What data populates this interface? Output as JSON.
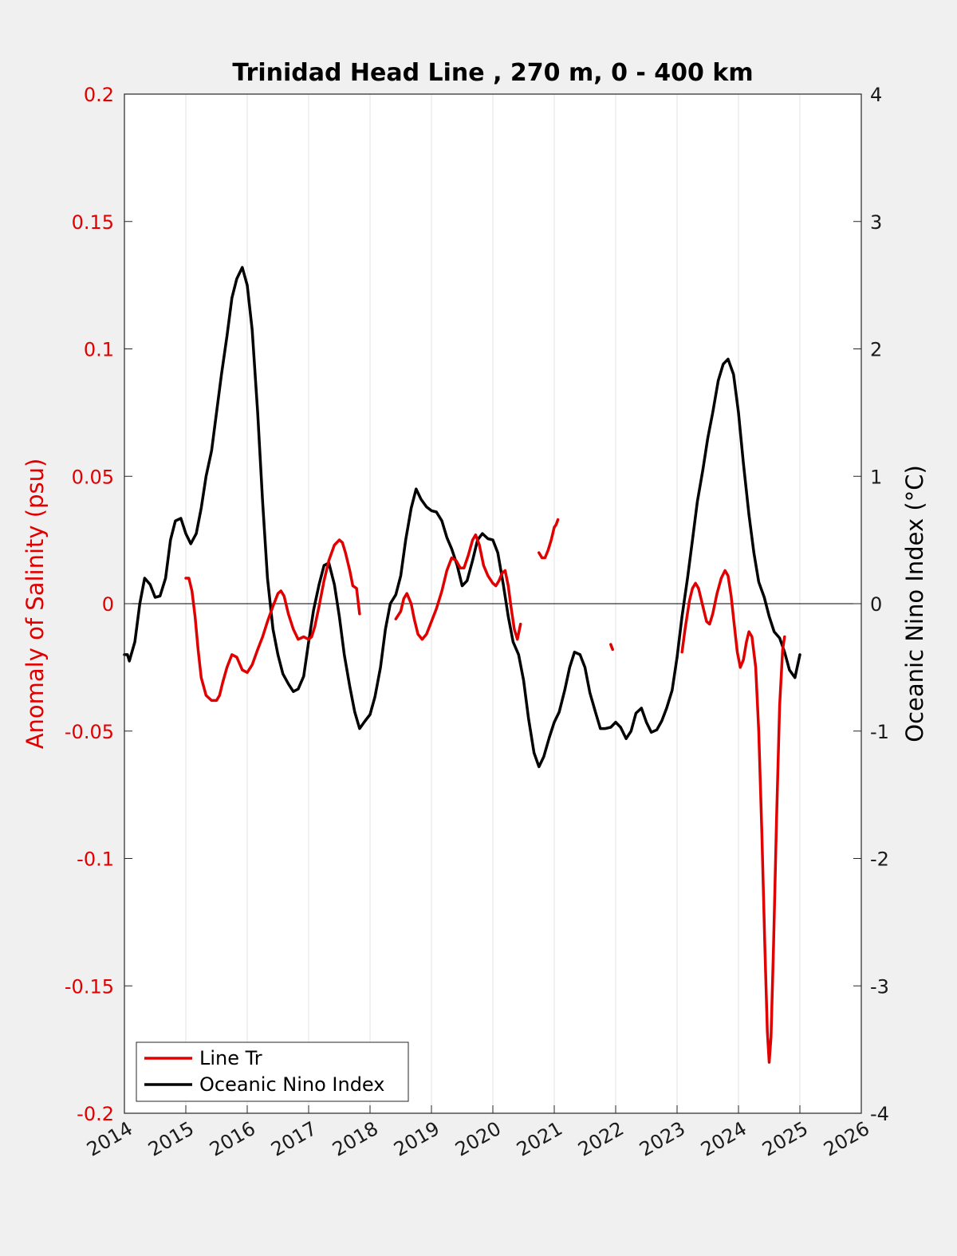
{
  "chart_data": {
    "type": "line",
    "title": "Trinidad Head Line , 270 m, 0 - 400 km",
    "xlim": [
      2014,
      2026
    ],
    "x_ticks": [
      "2014",
      "2015",
      "2016",
      "2017",
      "2018",
      "2019",
      "2020",
      "2021",
      "2022",
      "2023",
      "2024",
      "2025",
      "2026"
    ],
    "y_left": {
      "label": "Anomaly of Salinity (psu)",
      "lim": [
        -0.2,
        0.2
      ],
      "ticks": [
        "0.2",
        "0.15",
        "0.1",
        "0.05",
        "0",
        "-0.05",
        "-0.1",
        "-0.15",
        "-0.2"
      ],
      "color": "#e00000"
    },
    "y_right": {
      "label": "Oceanic Nino Index (°C)",
      "lim": [
        -4,
        4
      ],
      "ticks": [
        "4",
        "3",
        "2",
        "1",
        "0",
        "-1",
        "-2",
        "-3",
        "-4"
      ],
      "color": "#000000"
    },
    "grid": "vertical",
    "zero_line": true,
    "legend_position": "bottom-left",
    "series": [
      {
        "name": "Line Tr",
        "axis": "left",
        "color": "#e00000",
        "segments": [
          [
            [
              2015.0,
              0.01
            ],
            [
              2015.05,
              0.01
            ],
            [
              2015.1,
              0.005
            ],
            [
              2015.15,
              -0.005
            ],
            [
              2015.2,
              -0.018
            ],
            [
              2015.25,
              -0.029
            ],
            [
              2015.33,
              -0.036
            ],
            [
              2015.42,
              -0.038
            ],
            [
              2015.5,
              -0.038
            ],
            [
              2015.55,
              -0.036
            ],
            [
              2015.6,
              -0.031
            ],
            [
              2015.67,
              -0.025
            ],
            [
              2015.75,
              -0.02
            ],
            [
              2015.83,
              -0.021
            ],
            [
              2015.92,
              -0.026
            ],
            [
              2016.0,
              -0.027
            ],
            [
              2016.08,
              -0.024
            ],
            [
              2016.17,
              -0.018
            ],
            [
              2016.25,
              -0.013
            ],
            [
              2016.33,
              -0.007
            ],
            [
              2016.42,
              -0.001
            ],
            [
              2016.5,
              0.004
            ],
            [
              2016.55,
              0.005
            ],
            [
              2016.6,
              0.003
            ],
            [
              2016.67,
              -0.004
            ],
            [
              2016.75,
              -0.01
            ],
            [
              2016.83,
              -0.014
            ],
            [
              2016.92,
              -0.013
            ],
            [
              2017.0,
              -0.014
            ],
            [
              2017.05,
              -0.013
            ],
            [
              2017.1,
              -0.009
            ],
            [
              2017.17,
              -0.001
            ],
            [
              2017.25,
              0.009
            ],
            [
              2017.33,
              0.017
            ],
            [
              2017.42,
              0.023
            ],
            [
              2017.5,
              0.025
            ],
            [
              2017.55,
              0.024
            ],
            [
              2017.6,
              0.02
            ],
            [
              2017.67,
              0.013
            ],
            [
              2017.72,
              0.007
            ],
            [
              2017.78,
              0.006
            ],
            [
              2017.83,
              -0.004
            ]
          ],
          [
            [
              2018.42,
              -0.006
            ],
            [
              2018.5,
              -0.003
            ],
            [
              2018.55,
              0.002
            ],
            [
              2018.6,
              0.004
            ],
            [
              2018.67,
              0.0
            ],
            [
              2018.72,
              -0.006
            ],
            [
              2018.78,
              -0.012
            ],
            [
              2018.85,
              -0.014
            ],
            [
              2018.92,
              -0.012
            ],
            [
              2019.0,
              -0.007
            ],
            [
              2019.08,
              -0.002
            ],
            [
              2019.17,
              0.005
            ],
            [
              2019.25,
              0.013
            ],
            [
              2019.33,
              0.018
            ],
            [
              2019.4,
              0.017
            ],
            [
              2019.47,
              0.014
            ],
            [
              2019.53,
              0.014
            ],
            [
              2019.6,
              0.019
            ],
            [
              2019.67,
              0.025
            ],
            [
              2019.72,
              0.027
            ],
            [
              2019.78,
              0.023
            ],
            [
              2019.85,
              0.015
            ],
            [
              2019.92,
              0.011
            ],
            [
              2020.0,
              0.008
            ],
            [
              2020.05,
              0.007
            ],
            [
              2020.1,
              0.009
            ],
            [
              2020.15,
              0.012
            ],
            [
              2020.2,
              0.013
            ],
            [
              2020.25,
              0.007
            ],
            [
              2020.3,
              -0.002
            ],
            [
              2020.35,
              -0.01
            ],
            [
              2020.4,
              -0.014
            ],
            [
              2020.45,
              -0.008
            ]
          ],
          [
            [
              2020.75,
              0.02
            ],
            [
              2020.8,
              0.018
            ],
            [
              2020.85,
              0.018
            ],
            [
              2020.9,
              0.021
            ],
            [
              2020.95,
              0.025
            ],
            [
              2021.0,
              0.03
            ],
            [
              2021.03,
              0.031
            ],
            [
              2021.06,
              0.033
            ]
          ],
          [
            [
              2021.92,
              -0.016
            ],
            [
              2021.95,
              -0.018
            ]
          ],
          [
            [
              2023.08,
              -0.019
            ],
            [
              2023.13,
              -0.01
            ],
            [
              2023.2,
              0.001
            ],
            [
              2023.25,
              0.006
            ],
            [
              2023.3,
              0.008
            ],
            [
              2023.35,
              0.006
            ],
            [
              2023.42,
              -0.001
            ],
            [
              2023.48,
              -0.007
            ],
            [
              2023.53,
              -0.008
            ],
            [
              2023.58,
              -0.004
            ],
            [
              2023.65,
              0.004
            ],
            [
              2023.72,
              0.01
            ],
            [
              2023.78,
              0.013
            ],
            [
              2023.83,
              0.011
            ],
            [
              2023.88,
              0.003
            ],
            [
              2023.93,
              -0.008
            ],
            [
              2023.98,
              -0.019
            ],
            [
              2024.03,
              -0.025
            ],
            [
              2024.08,
              -0.022
            ],
            [
              2024.13,
              -0.015
            ],
            [
              2024.17,
              -0.011
            ],
            [
              2024.22,
              -0.013
            ],
            [
              2024.28,
              -0.025
            ],
            [
              2024.33,
              -0.05
            ],
            [
              2024.38,
              -0.09
            ],
            [
              2024.43,
              -0.135
            ],
            [
              2024.47,
              -0.168
            ],
            [
              2024.5,
              -0.18
            ],
            [
              2024.53,
              -0.17
            ],
            [
              2024.57,
              -0.135
            ],
            [
              2024.62,
              -0.085
            ],
            [
              2024.67,
              -0.04
            ],
            [
              2024.72,
              -0.018
            ],
            [
              2024.75,
              -0.013
            ]
          ]
        ]
      },
      {
        "name": "Oceanic Nino Index",
        "axis": "right",
        "color": "#000000",
        "segments": [
          [
            [
              2014.0,
              -0.4
            ],
            [
              2014.05,
              -0.4
            ],
            [
              2014.08,
              -0.45
            ],
            [
              2014.17,
              -0.3
            ],
            [
              2014.25,
              0.0
            ],
            [
              2014.33,
              0.2
            ],
            [
              2014.42,
              0.15
            ],
            [
              2014.5,
              0.05
            ],
            [
              2014.58,
              0.06
            ],
            [
              2014.67,
              0.2
            ],
            [
              2014.75,
              0.5
            ],
            [
              2014.83,
              0.65
            ],
            [
              2014.92,
              0.67
            ],
            [
              2015.0,
              0.55
            ],
            [
              2015.08,
              0.47
            ],
            [
              2015.17,
              0.55
            ],
            [
              2015.25,
              0.75
            ],
            [
              2015.33,
              1.0
            ],
            [
              2015.42,
              1.2
            ],
            [
              2015.5,
              1.5
            ],
            [
              2015.58,
              1.8
            ],
            [
              2015.67,
              2.1
            ],
            [
              2015.75,
              2.4
            ],
            [
              2015.83,
              2.55
            ],
            [
              2015.92,
              2.64
            ],
            [
              2016.0,
              2.5
            ],
            [
              2016.08,
              2.15
            ],
            [
              2016.17,
              1.5
            ],
            [
              2016.25,
              0.8
            ],
            [
              2016.33,
              0.2
            ],
            [
              2016.42,
              -0.2
            ],
            [
              2016.5,
              -0.4
            ],
            [
              2016.58,
              -0.55
            ],
            [
              2016.67,
              -0.63
            ],
            [
              2016.75,
              -0.69
            ],
            [
              2016.83,
              -0.67
            ],
            [
              2016.92,
              -0.57
            ],
            [
              2017.0,
              -0.3
            ],
            [
              2017.08,
              -0.05
            ],
            [
              2017.17,
              0.15
            ],
            [
              2017.25,
              0.3
            ],
            [
              2017.33,
              0.32
            ],
            [
              2017.42,
              0.15
            ],
            [
              2017.5,
              -0.1
            ],
            [
              2017.58,
              -0.4
            ],
            [
              2017.67,
              -0.65
            ],
            [
              2017.75,
              -0.85
            ],
            [
              2017.83,
              -0.98
            ],
            [
              2017.92,
              -0.92
            ],
            [
              2018.0,
              -0.87
            ],
            [
              2018.08,
              -0.73
            ],
            [
              2018.17,
              -0.5
            ],
            [
              2018.25,
              -0.2
            ],
            [
              2018.33,
              0.0
            ],
            [
              2018.42,
              0.07
            ],
            [
              2018.5,
              0.22
            ],
            [
              2018.58,
              0.5
            ],
            [
              2018.67,
              0.75
            ],
            [
              2018.75,
              0.9
            ],
            [
              2018.83,
              0.82
            ],
            [
              2018.92,
              0.76
            ],
            [
              2019.0,
              0.73
            ],
            [
              2019.08,
              0.72
            ],
            [
              2019.17,
              0.65
            ],
            [
              2019.25,
              0.52
            ],
            [
              2019.33,
              0.43
            ],
            [
              2019.42,
              0.3
            ],
            [
              2019.5,
              0.14
            ],
            [
              2019.58,
              0.18
            ],
            [
              2019.67,
              0.34
            ],
            [
              2019.75,
              0.5
            ],
            [
              2019.83,
              0.55
            ],
            [
              2019.92,
              0.51
            ],
            [
              2020.0,
              0.5
            ],
            [
              2020.08,
              0.4
            ],
            [
              2020.17,
              0.15
            ],
            [
              2020.25,
              -0.1
            ],
            [
              2020.33,
              -0.3
            ],
            [
              2020.42,
              -0.4
            ],
            [
              2020.5,
              -0.6
            ],
            [
              2020.58,
              -0.9
            ],
            [
              2020.67,
              -1.17
            ],
            [
              2020.75,
              -1.28
            ],
            [
              2020.83,
              -1.2
            ],
            [
              2020.92,
              -1.05
            ],
            [
              2021.0,
              -0.93
            ],
            [
              2021.08,
              -0.85
            ],
            [
              2021.17,
              -0.68
            ],
            [
              2021.25,
              -0.5
            ],
            [
              2021.33,
              -0.38
            ],
            [
              2021.42,
              -0.4
            ],
            [
              2021.5,
              -0.5
            ],
            [
              2021.58,
              -0.7
            ],
            [
              2021.67,
              -0.85
            ],
            [
              2021.75,
              -0.98
            ],
            [
              2021.83,
              -0.98
            ],
            [
              2021.92,
              -0.97
            ],
            [
              2022.0,
              -0.93
            ],
            [
              2022.08,
              -0.97
            ],
            [
              2022.17,
              -1.06
            ],
            [
              2022.25,
              -1.0
            ],
            [
              2022.33,
              -0.86
            ],
            [
              2022.42,
              -0.82
            ],
            [
              2022.5,
              -0.93
            ],
            [
              2022.58,
              -1.01
            ],
            [
              2022.67,
              -0.99
            ],
            [
              2022.75,
              -0.92
            ],
            [
              2022.83,
              -0.82
            ],
            [
              2022.92,
              -0.68
            ],
            [
              2023.0,
              -0.42
            ],
            [
              2023.08,
              -0.1
            ],
            [
              2023.17,
              0.2
            ],
            [
              2023.25,
              0.5
            ],
            [
              2023.33,
              0.8
            ],
            [
              2023.42,
              1.05
            ],
            [
              2023.5,
              1.3
            ],
            [
              2023.58,
              1.5
            ],
            [
              2023.67,
              1.75
            ],
            [
              2023.75,
              1.88
            ],
            [
              2023.83,
              1.92
            ],
            [
              2023.92,
              1.8
            ],
            [
              2024.0,
              1.5
            ],
            [
              2024.08,
              1.1
            ],
            [
              2024.17,
              0.7
            ],
            [
              2024.25,
              0.4
            ],
            [
              2024.33,
              0.17
            ],
            [
              2024.42,
              0.05
            ],
            [
              2024.5,
              -0.1
            ],
            [
              2024.58,
              -0.22
            ],
            [
              2024.67,
              -0.27
            ],
            [
              2024.75,
              -0.38
            ],
            [
              2024.83,
              -0.52
            ],
            [
              2024.92,
              -0.58
            ],
            [
              2025.0,
              -0.4
            ]
          ]
        ]
      }
    ]
  }
}
